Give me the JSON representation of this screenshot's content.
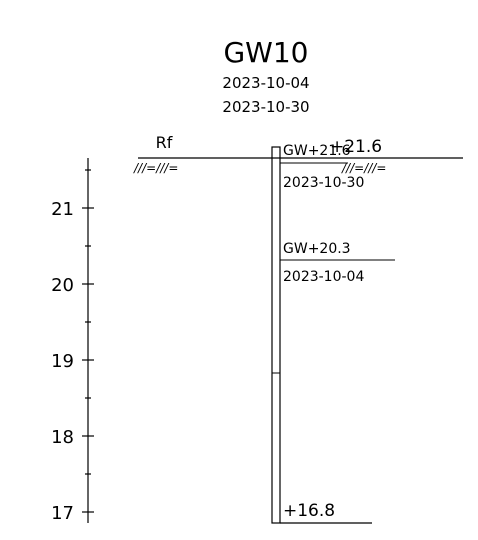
{
  "header": {
    "title": "GW10",
    "date_start": "2023-10-04",
    "date_end": "2023-10-30"
  },
  "surface": {
    "label": "Rf",
    "elevation_label": "+21.6"
  },
  "axis": {
    "tick_labels": [
      "21",
      "20",
      "19",
      "18",
      "17"
    ]
  },
  "groundwater": [
    {
      "label": "GW+21.6",
      "date": "2023-10-30",
      "elevation": 21.6
    },
    {
      "label": "GW+20.3",
      "date": "2023-10-04",
      "elevation": 20.3
    }
  ],
  "bottom": {
    "label": "+16.8",
    "elevation": 16.8
  },
  "hatch_symbol": "///=///="
}
